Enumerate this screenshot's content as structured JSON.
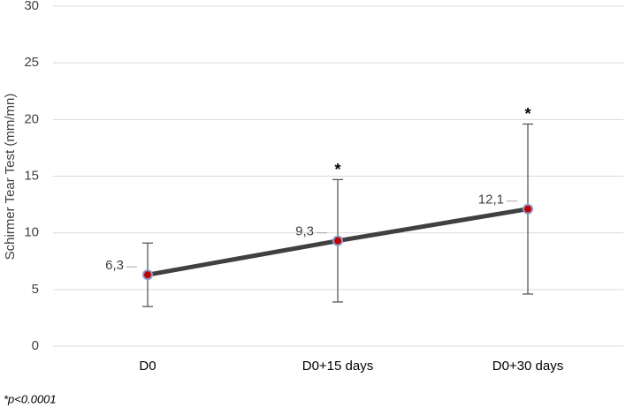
{
  "chart_data": {
    "type": "line",
    "y_label": "Schirmer Tear Test (mm/mn)",
    "categories": [
      "D0",
      "D0+15 days",
      "D0+30 days"
    ],
    "series": [
      {
        "name": "Schirmer",
        "color": "#404040",
        "marker_color": "#c00000",
        "values": [
          6.3,
          9.3,
          12.1
        ],
        "value_labels": [
          "6,3",
          "9,3",
          "12,1"
        ],
        "errors": [
          2.8,
          5.4,
          7.5
        ]
      }
    ],
    "annotations": [
      null,
      "*",
      "*"
    ],
    "footnote": "*p<0.0001",
    "ylim": [
      0,
      30
    ],
    "yticks": [
      0,
      5,
      10,
      15,
      20,
      25,
      30
    ],
    "grid": true
  }
}
